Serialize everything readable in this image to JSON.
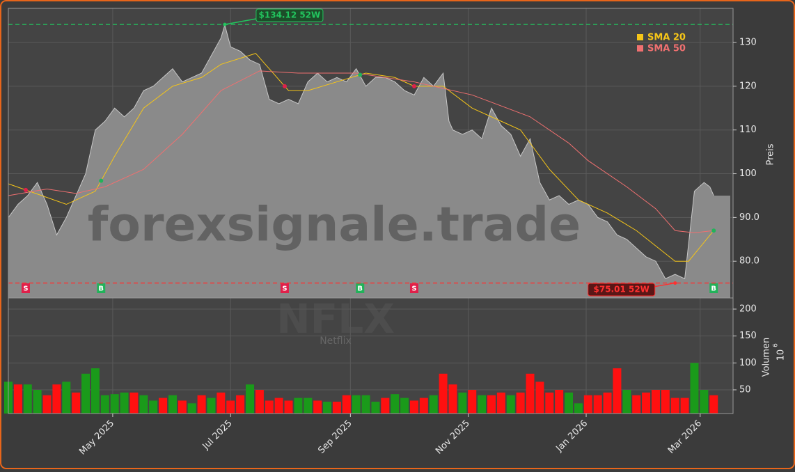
{
  "chart_data": {
    "type": "area",
    "watermark": "forexsignale.trade",
    "symbol": "NFLX",
    "company": "Netflix",
    "ylabel": "Preis",
    "y2label": "Volumen",
    "y2unit_base": "10",
    "y2unit_exp": "6",
    "xlim": [
      0,
      375
    ],
    "xticks": [
      {
        "value": 54,
        "label": "May 2025"
      },
      {
        "value": 115,
        "label": "Jul 2025"
      },
      {
        "value": 177,
        "label": "Sep 2025"
      },
      {
        "value": 238,
        "label": "Nov 2025"
      },
      {
        "value": 299,
        "label": "Jan 2026"
      },
      {
        "value": 358,
        "label": "Mar 2026"
      }
    ],
    "ylim": [
      71.6,
      137.8
    ],
    "yticks": [
      {
        "value": 80,
        "label": "80.0"
      },
      {
        "value": 90,
        "label": "90.0"
      },
      100,
      110,
      120,
      130
    ],
    "y2lim": [
      6,
      220.7
    ],
    "y2ticks": [
      50,
      100,
      150,
      200
    ],
    "grid": true,
    "price": {
      "color": "#8a8a8a",
      "x": [
        0,
        5,
        10,
        15,
        20,
        25,
        30,
        35,
        40,
        45,
        50,
        55,
        60,
        65,
        70,
        75,
        80,
        85,
        90,
        95,
        100,
        105,
        110,
        112,
        115,
        120,
        125,
        130,
        135,
        140,
        145,
        150,
        155,
        160,
        165,
        170,
        175,
        180,
        185,
        190,
        195,
        200,
        205,
        210,
        215,
        220,
        225,
        228,
        230,
        235,
        240,
        245,
        250,
        255,
        260,
        265,
        270,
        275,
        280,
        285,
        290,
        295,
        300,
        305,
        310,
        315,
        320,
        325,
        330,
        335,
        340,
        345,
        350,
        355,
        360,
        363,
        365
      ],
      "values": [
        90,
        93,
        95,
        98,
        93,
        86,
        90,
        95,
        100,
        110,
        112,
        115,
        113,
        115,
        119,
        120,
        122,
        124,
        121,
        122,
        123,
        127,
        131,
        134,
        129,
        128,
        126,
        125,
        117,
        116,
        117,
        116,
        121,
        123,
        121,
        122,
        121,
        124,
        120,
        122,
        122,
        121,
        119,
        118,
        122,
        120,
        123,
        112,
        110,
        109,
        110,
        108,
        115,
        111,
        109,
        104,
        108,
        98,
        94,
        95,
        93,
        94,
        93,
        90,
        89,
        86,
        85,
        83,
        81,
        80,
        76,
        77,
        76,
        96,
        98,
        97,
        95
      ]
    },
    "series": [
      {
        "name": "SMA 20",
        "color": "#f5c518",
        "x": [
          0,
          30,
          45,
          55,
          70,
          85,
          100,
          110,
          128,
          145,
          155,
          170,
          185,
          200,
          210,
          225,
          240,
          255,
          265,
          280,
          295,
          310,
          325,
          345,
          352,
          365
        ],
        "values": [
          97.7,
          93,
          96,
          104,
          115,
          120,
          122,
          125,
          127.5,
          119,
          119,
          121,
          123,
          122,
          120,
          120,
          115,
          112,
          110,
          101,
          94,
          91,
          87,
          80,
          80,
          87
        ]
      },
      {
        "name": "SMA 50",
        "color": "#f07070",
        "x": [
          0,
          20,
          35,
          50,
          70,
          90,
          110,
          130,
          150,
          180,
          210,
          240,
          270,
          290,
          300,
          320,
          335,
          345,
          355,
          365
        ],
        "values": [
          95,
          96.5,
          95.5,
          97,
          101,
          109,
          119,
          123.5,
          123,
          123,
          121,
          118,
          113,
          107,
          103,
          97,
          92,
          87,
          86.5,
          87
        ]
      }
    ],
    "volume": {
      "x": [
        0,
        5,
        10,
        15,
        20,
        25,
        30,
        35,
        40,
        45,
        50,
        55,
        60,
        65,
        70,
        75,
        80,
        85,
        90,
        95,
        100,
        105,
        110,
        115,
        120,
        125,
        130,
        135,
        140,
        145,
        150,
        155,
        160,
        165,
        170,
        175,
        180,
        185,
        190,
        195,
        200,
        205,
        210,
        215,
        220,
        225,
        230,
        235,
        240,
        245,
        250,
        255,
        260,
        265,
        270,
        275,
        280,
        285,
        290,
        295,
        300,
        305,
        310,
        315,
        320,
        325,
        330,
        335,
        340,
        345,
        350,
        355,
        360,
        365
      ],
      "values": [
        65,
        60,
        60,
        50,
        40,
        60,
        65,
        45,
        80,
        90,
        40,
        42,
        45,
        45,
        40,
        30,
        35,
        40,
        30,
        25,
        40,
        35,
        45,
        30,
        40,
        60,
        50,
        30,
        35,
        30,
        35,
        35,
        30,
        28,
        28,
        40,
        40,
        40,
        28,
        35,
        42,
        35,
        30,
        35,
        40,
        80,
        60,
        45,
        50,
        40,
        40,
        45,
        40,
        45,
        80,
        65,
        45,
        50,
        45,
        25,
        40,
        40,
        45,
        90,
        50,
        40,
        45,
        50,
        50,
        35,
        35,
        100,
        50,
        40
      ],
      "colors": [
        "#1a9a1a",
        "#ff1010",
        "#1a9a1a",
        "#1a9a1a",
        "#ff1010",
        "#ff1010",
        "#1a9a1a",
        "#ff1010",
        "#1a9a1a",
        "#1a9a1a",
        "#1a9a1a",
        "#1a9a1a",
        "#1a9a1a",
        "#ff1010",
        "#1a9a1a",
        "#1a9a1a",
        "#ff1010",
        "#1a9a1a",
        "#ff1010",
        "#1a9a1a",
        "#ff1010",
        "#1a9a1a",
        "#ff1010",
        "#ff1010",
        "#ff1010",
        "#1a9a1a",
        "#ff1010",
        "#ff1010",
        "#ff1010",
        "#ff1010",
        "#1a9a1a",
        "#1a9a1a",
        "#ff1010",
        "#1a9a1a",
        "#ff1010",
        "#ff1010",
        "#1a9a1a",
        "#1a9a1a",
        "#1a9a1a",
        "#ff1010",
        "#1a9a1a",
        "#1a9a1a",
        "#ff1010",
        "#ff1010",
        "#1a9a1a",
        "#ff1010",
        "#ff1010",
        "#1a9a1a",
        "#ff1010",
        "#1a9a1a",
        "#ff1010",
        "#ff1010",
        "#1a9a1a",
        "#ff1010",
        "#ff1010",
        "#ff1010",
        "#ff1010",
        "#ff1010",
        "#1a9a1a",
        "#1a9a1a",
        "#ff1010",
        "#ff1010",
        "#ff1010",
        "#ff1010",
        "#1a9a1a",
        "#ff1010",
        "#ff1010",
        "#ff1010",
        "#ff1010",
        "#ff1010",
        "#ff1010",
        "#1a9a1a",
        "#1a9a1a",
        "#ff1010"
      ]
    },
    "signals": [
      {
        "x": 9,
        "label": "S",
        "color": "#e0204a"
      },
      {
        "x": 48,
        "label": "B",
        "color": "#22b35a"
      },
      {
        "x": 143,
        "label": "S",
        "color": "#e0204a"
      },
      {
        "x": 182,
        "label": "B",
        "color": "#22b35a"
      },
      {
        "x": 210,
        "label": "S",
        "color": "#e0204a"
      },
      {
        "x": 365,
        "label": "B",
        "color": "#22b35a"
      }
    ],
    "annotations": [
      {
        "text": "$134.12 52W",
        "value": 134.12,
        "x": 112,
        "color": "#22c55e"
      },
      {
        "text": "$75.01 52W",
        "value": 75.01,
        "x": 345,
        "color": "#ff3030"
      }
    ]
  }
}
